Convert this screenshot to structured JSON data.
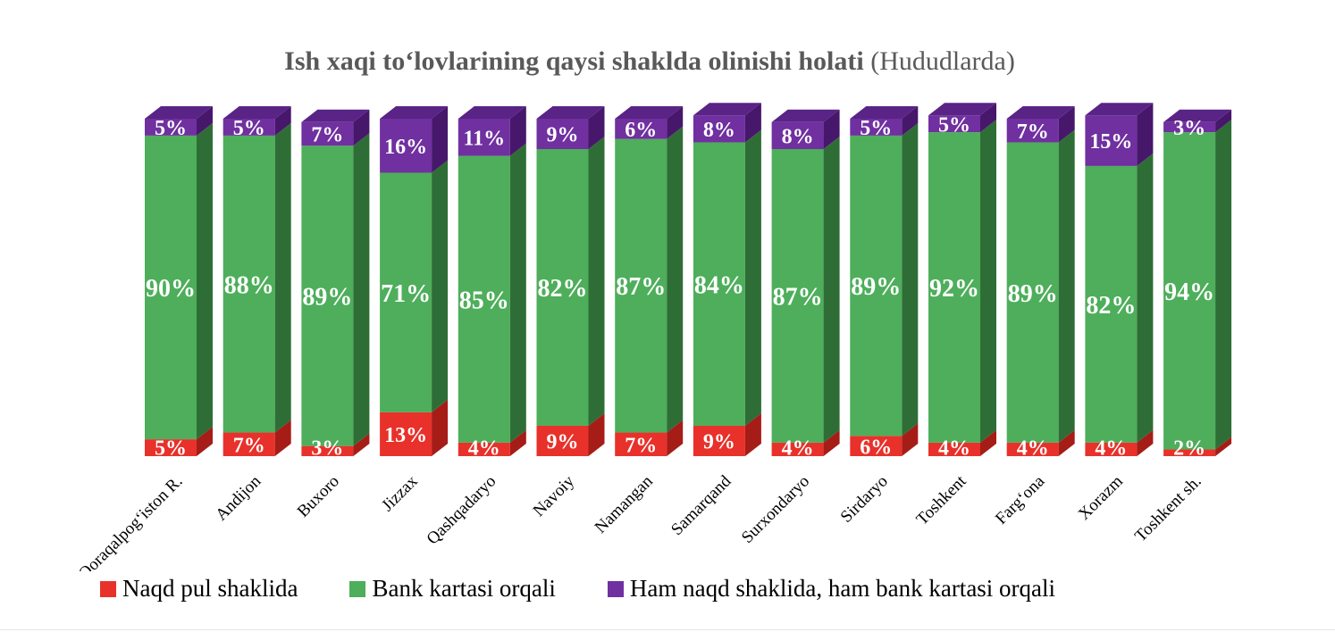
{
  "chart_data": {
    "type": "bar",
    "stacked": true,
    "three_d": true,
    "title": "Ish xaqi to‘lovlarining qaysi shaklda olinishi holati",
    "subtitle": "(Hududlarda)",
    "categories": [
      "Qoraqalpog‘iston R.",
      "Andijon",
      "Buxoro",
      "Jizzax",
      "Qashqadaryo",
      "Navoiy",
      "Namangan",
      "Samarqand",
      "Surxondaryo",
      "Sirdaryo",
      "Toshkent",
      "Farg‘ona",
      "Xorazm",
      "Toshkent sh."
    ],
    "series": [
      {
        "name": "Naqd pul shaklida",
        "color": "#e8312a",
        "values": [
          5,
          7,
          3,
          13,
          4,
          9,
          7,
          9,
          4,
          6,
          4,
          4,
          4,
          2
        ],
        "labels": [
          "5%",
          "7%",
          "3%",
          "13%",
          "4%",
          "9%",
          "7%",
          "9%",
          "4%",
          "6%",
          "4%",
          "4%",
          "4%",
          "2%"
        ]
      },
      {
        "name": "Bank kartasi orqali",
        "color": "#4eae5b",
        "values": [
          90,
          88,
          89,
          71,
          85,
          82,
          87,
          84,
          87,
          89,
          92,
          89,
          82,
          94
        ],
        "labels": [
          "90%",
          "88%",
          "89%",
          "71%",
          "85%",
          "82%",
          "87%",
          "84%",
          "87%",
          "89%",
          "92%",
          "89%",
          "82%",
          "94%"
        ]
      },
      {
        "name": "Ham naqd shaklida, ham bank kartasi orqali",
        "color": "#7030a0",
        "values": [
          5,
          5,
          7,
          16,
          11,
          9,
          6,
          8,
          8,
          5,
          5,
          7,
          15,
          3
        ],
        "labels": [
          "5%",
          "5%",
          "7%",
          "16%",
          "11%",
          "9%",
          "6%",
          "8%",
          "8%",
          "5%",
          "5%",
          "7%",
          "15%",
          "3%"
        ]
      }
    ],
    "ylim": [
      0,
      100
    ],
    "legend_position": "bottom",
    "grid": false
  }
}
